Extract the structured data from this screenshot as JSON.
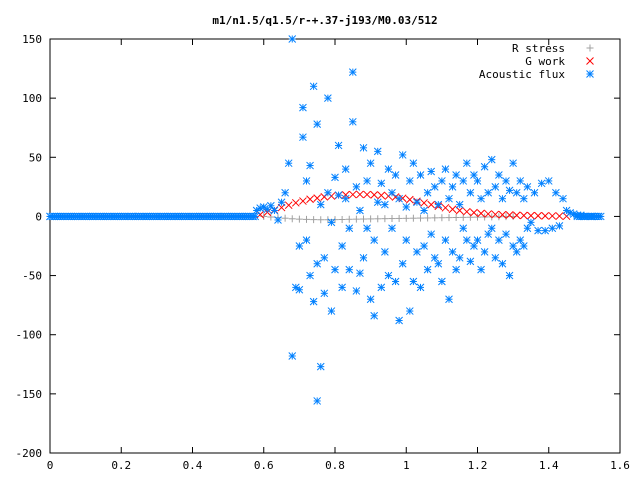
{
  "chart_data": {
    "type": "scatter",
    "title": "m1/n1.5/q1.5/r-+.37-j193/M0.03/512",
    "xlabel": "",
    "ylabel": "",
    "xlim": [
      0,
      1.6
    ],
    "ylim": [
      -200,
      150
    ],
    "x_ticks": [
      0,
      0.2,
      0.4,
      0.6,
      0.8,
      1,
      1.2,
      1.4,
      1.6
    ],
    "x_tick_labels": [
      "0",
      "0.2",
      "0.4",
      "0.6",
      "0.8",
      "1",
      "1.2",
      "1.4",
      "1.6"
    ],
    "y_ticks": [
      -200,
      -150,
      -100,
      -50,
      0,
      50,
      100,
      150
    ],
    "y_tick_labels": [
      "-200",
      "-150",
      "-100",
      "-50",
      "0",
      "50",
      "100",
      "150"
    ],
    "grid": false,
    "legend_position": "top-right",
    "series": [
      {
        "name": "R stress",
        "marker": "plus",
        "color": "#a0a0a0",
        "points": [
          [
            0.6,
            0.0
          ],
          [
            0.62,
            -0.5
          ],
          [
            0.64,
            -1.0
          ],
          [
            0.66,
            -1.5
          ],
          [
            0.68,
            -2.0
          ],
          [
            0.7,
            -2.3
          ],
          [
            0.72,
            -2.5
          ],
          [
            0.74,
            -2.7
          ],
          [
            0.76,
            -2.8
          ],
          [
            0.78,
            -2.8
          ],
          [
            0.8,
            -2.7
          ],
          [
            0.82,
            -2.6
          ],
          [
            0.84,
            -2.4
          ],
          [
            0.86,
            -2.3
          ],
          [
            0.88,
            -2.2
          ],
          [
            0.9,
            -2.1
          ],
          [
            0.92,
            -2.0
          ],
          [
            0.94,
            -1.9
          ],
          [
            0.96,
            -1.8
          ],
          [
            0.98,
            -1.7
          ],
          [
            1.0,
            -1.6
          ],
          [
            1.02,
            -1.5
          ],
          [
            1.04,
            -1.4
          ],
          [
            1.06,
            -1.3
          ],
          [
            1.08,
            -1.2
          ],
          [
            1.1,
            -1.1
          ],
          [
            1.12,
            -1.0
          ],
          [
            1.14,
            -0.9
          ],
          [
            1.16,
            -0.8
          ],
          [
            1.18,
            -0.7
          ],
          [
            1.2,
            -0.6
          ],
          [
            1.22,
            -0.5
          ],
          [
            1.24,
            -0.4
          ],
          [
            1.26,
            -0.3
          ],
          [
            1.28,
            -0.2
          ],
          [
            1.3,
            -0.1
          ]
        ]
      },
      {
        "name": "G work",
        "marker": "cross",
        "color": "#ff0000",
        "points": [
          [
            0.59,
            1.5
          ],
          [
            0.61,
            3.5
          ],
          [
            0.63,
            5.5
          ],
          [
            0.65,
            7.5
          ],
          [
            0.67,
            9.5
          ],
          [
            0.69,
            11.5
          ],
          [
            0.71,
            13.0
          ],
          [
            0.73,
            14.5
          ],
          [
            0.75,
            15.5
          ],
          [
            0.77,
            16.5
          ],
          [
            0.79,
            17.2
          ],
          [
            0.81,
            17.8
          ],
          [
            0.83,
            18.2
          ],
          [
            0.85,
            18.5
          ],
          [
            0.87,
            18.6
          ],
          [
            0.89,
            18.5
          ],
          [
            0.91,
            18.2
          ],
          [
            0.93,
            17.8
          ],
          [
            0.95,
            17.2
          ],
          [
            0.97,
            16.4
          ],
          [
            0.99,
            15.4
          ],
          [
            1.01,
            14.2
          ],
          [
            1.03,
            12.8
          ],
          [
            1.05,
            11.4
          ],
          [
            1.07,
            10.0
          ],
          [
            1.09,
            8.6
          ],
          [
            1.11,
            7.3
          ],
          [
            1.13,
            6.1
          ],
          [
            1.15,
            5.0
          ],
          [
            1.17,
            4.0
          ],
          [
            1.19,
            3.2
          ],
          [
            1.21,
            2.6
          ],
          [
            1.23,
            2.1
          ],
          [
            1.25,
            1.7
          ],
          [
            1.27,
            1.4
          ],
          [
            1.29,
            1.2
          ],
          [
            1.31,
            1.0
          ],
          [
            1.33,
            0.8
          ],
          [
            1.35,
            0.7
          ],
          [
            1.37,
            0.6
          ],
          [
            1.39,
            0.5
          ],
          [
            1.41,
            0.4
          ],
          [
            1.43,
            0.3
          ],
          [
            1.45,
            0.2
          ]
        ]
      },
      {
        "name": "Acoustic flux",
        "marker": "star",
        "color": "#0080ff",
        "points": [
          [
            0.0,
            0
          ],
          [
            0.03,
            0
          ],
          [
            0.06,
            0
          ],
          [
            0.09,
            0
          ],
          [
            0.12,
            0
          ],
          [
            0.15,
            0
          ],
          [
            0.18,
            0
          ],
          [
            0.21,
            0
          ],
          [
            0.24,
            0
          ],
          [
            0.27,
            0
          ],
          [
            0.3,
            0
          ],
          [
            0.33,
            0
          ],
          [
            0.36,
            0
          ],
          [
            0.39,
            0
          ],
          [
            0.42,
            0
          ],
          [
            0.45,
            0
          ],
          [
            0.48,
            0
          ],
          [
            0.51,
            0
          ],
          [
            0.54,
            0
          ],
          [
            0.57,
            0
          ],
          [
            0.58,
            5
          ],
          [
            0.59,
            7
          ],
          [
            0.6,
            8
          ],
          [
            0.61,
            6
          ],
          [
            0.62,
            9
          ],
          [
            0.63,
            5
          ],
          [
            0.64,
            -3
          ],
          [
            0.65,
            12
          ],
          [
            0.66,
            20
          ],
          [
            0.67,
            45
          ],
          [
            0.68,
            150
          ],
          [
            0.68,
            -118
          ],
          [
            0.69,
            -60
          ],
          [
            0.7,
            -62
          ],
          [
            0.7,
            -25
          ],
          [
            0.71,
            92
          ],
          [
            0.71,
            67
          ],
          [
            0.72,
            30
          ],
          [
            0.72,
            -20
          ],
          [
            0.73,
            43
          ],
          [
            0.73,
            -50
          ],
          [
            0.74,
            110
          ],
          [
            0.74,
            -72
          ],
          [
            0.75,
            78
          ],
          [
            0.75,
            -40
          ],
          [
            0.75,
            -156
          ],
          [
            0.76,
            -127
          ],
          [
            0.76,
            10
          ],
          [
            0.77,
            -65
          ],
          [
            0.77,
            -35
          ],
          [
            0.78,
            100
          ],
          [
            0.78,
            20
          ],
          [
            0.79,
            -80
          ],
          [
            0.79,
            -5
          ],
          [
            0.8,
            33
          ],
          [
            0.8,
            -45
          ],
          [
            0.81,
            60
          ],
          [
            0.81,
            18
          ],
          [
            0.82,
            -25
          ],
          [
            0.82,
            -60
          ],
          [
            0.83,
            40
          ],
          [
            0.83,
            15
          ],
          [
            0.84,
            -10
          ],
          [
            0.84,
            -45
          ],
          [
            0.85,
            122
          ],
          [
            0.85,
            80
          ],
          [
            0.86,
            -63
          ],
          [
            0.86,
            25
          ],
          [
            0.87,
            -48
          ],
          [
            0.87,
            5
          ],
          [
            0.88,
            58
          ],
          [
            0.88,
            -35
          ],
          [
            0.89,
            30
          ],
          [
            0.89,
            -10
          ],
          [
            0.9,
            -70
          ],
          [
            0.9,
            45
          ],
          [
            0.91,
            -84
          ],
          [
            0.91,
            -20
          ],
          [
            0.92,
            12
          ],
          [
            0.92,
            55
          ],
          [
            0.93,
            -60
          ],
          [
            0.93,
            28
          ],
          [
            0.94,
            -30
          ],
          [
            0.94,
            10
          ],
          [
            0.95,
            40
          ],
          [
            0.95,
            -50
          ],
          [
            0.96,
            -10
          ],
          [
            0.96,
            20
          ],
          [
            0.97,
            -55
          ],
          [
            0.97,
            35
          ],
          [
            0.98,
            -88
          ],
          [
            0.98,
            15
          ],
          [
            0.99,
            -40
          ],
          [
            0.99,
            52
          ],
          [
            1.0,
            -20
          ],
          [
            1.0,
            8
          ],
          [
            1.01,
            -80
          ],
          [
            1.01,
            30
          ],
          [
            1.02,
            -55
          ],
          [
            1.02,
            45
          ],
          [
            1.03,
            12
          ],
          [
            1.03,
            -30
          ],
          [
            1.04,
            35
          ],
          [
            1.04,
            -60
          ],
          [
            1.05,
            5
          ],
          [
            1.05,
            -25
          ],
          [
            1.06,
            20
          ],
          [
            1.06,
            -45
          ],
          [
            1.07,
            38
          ],
          [
            1.07,
            -15
          ],
          [
            1.08,
            -35
          ],
          [
            1.08,
            25
          ],
          [
            1.09,
            10
          ],
          [
            1.09,
            -40
          ],
          [
            1.1,
            30
          ],
          [
            1.1,
            -55
          ],
          [
            1.11,
            40
          ],
          [
            1.11,
            -20
          ],
          [
            1.12,
            -70
          ],
          [
            1.12,
            15
          ],
          [
            1.13,
            25
          ],
          [
            1.13,
            -30
          ],
          [
            1.14,
            -45
          ],
          [
            1.14,
            35
          ],
          [
            1.15,
            10
          ],
          [
            1.15,
            -35
          ],
          [
            1.16,
            30
          ],
          [
            1.16,
            -10
          ],
          [
            1.17,
            -20
          ],
          [
            1.17,
            45
          ],
          [
            1.18,
            20
          ],
          [
            1.18,
            -38
          ],
          [
            1.19,
            -25
          ],
          [
            1.19,
            35
          ],
          [
            1.2,
            30
          ],
          [
            1.2,
            -20
          ],
          [
            1.21,
            -45
          ],
          [
            1.21,
            15
          ],
          [
            1.22,
            42
          ],
          [
            1.22,
            -30
          ],
          [
            1.23,
            20
          ],
          [
            1.23,
            -15
          ],
          [
            1.24,
            48
          ],
          [
            1.24,
            -10
          ],
          [
            1.25,
            -35
          ],
          [
            1.25,
            25
          ],
          [
            1.26,
            35
          ],
          [
            1.26,
            -20
          ],
          [
            1.27,
            -40
          ],
          [
            1.27,
            15
          ],
          [
            1.28,
            30
          ],
          [
            1.28,
            -15
          ],
          [
            1.29,
            -50
          ],
          [
            1.29,
            22
          ],
          [
            1.3,
            45
          ],
          [
            1.3,
            -25
          ],
          [
            1.31,
            -30
          ],
          [
            1.31,
            20
          ],
          [
            1.32,
            30
          ],
          [
            1.32,
            -20
          ],
          [
            1.33,
            15
          ],
          [
            1.33,
            -25
          ],
          [
            1.34,
            25
          ],
          [
            1.34,
            -10
          ],
          [
            1.35,
            -5
          ],
          [
            1.36,
            20
          ],
          [
            1.37,
            -12
          ],
          [
            1.38,
            28
          ],
          [
            1.39,
            -12
          ],
          [
            1.4,
            30
          ],
          [
            1.41,
            -10
          ],
          [
            1.42,
            20
          ],
          [
            1.43,
            -8
          ],
          [
            1.44,
            15
          ],
          [
            1.45,
            5
          ],
          [
            1.46,
            3
          ],
          [
            1.47,
            2
          ],
          [
            1.48,
            1
          ],
          [
            1.49,
            1
          ],
          [
            1.5,
            0
          ],
          [
            1.52,
            0
          ],
          [
            1.54,
            0
          ]
        ]
      }
    ]
  }
}
